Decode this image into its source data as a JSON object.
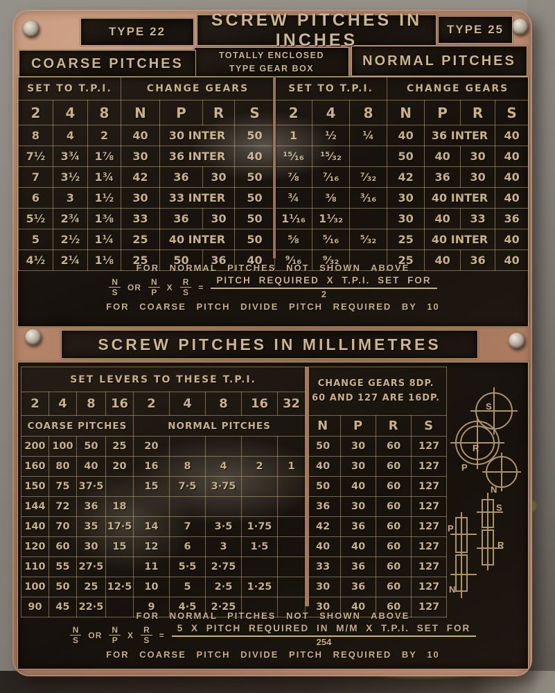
{
  "inches": {
    "type_left": "TYPE 22",
    "title": "SCREW PITCHES IN INCHES",
    "type_right": "TYPE 25",
    "enclosed_line1": "TOTALLY ENCLOSED",
    "enclosed_line2": "TYPE GEAR BOX",
    "coarse_label": "COARSE PITCHES",
    "normal_label": "NORMAL PITCHES",
    "set_tpi_label": "SET TO T.P.I.",
    "change_gears_label": "CHANGE GEARS",
    "col_letters": [
      "2",
      "4",
      "8",
      "N",
      "P",
      "R",
      "S",
      "2",
      "4",
      "8",
      "N",
      "P",
      "R",
      "S"
    ],
    "rows": [
      [
        "8",
        "4",
        "2",
        "40",
        {
          "t": "30 INTER",
          "s": 2
        },
        "50",
        "1",
        "½",
        "¼",
        "40",
        {
          "t": "36 INTER",
          "s": 2
        },
        "40"
      ],
      [
        "7½",
        "3¾",
        "1⅞",
        "30",
        {
          "t": "36 INTER",
          "s": 2
        },
        "40",
        "¹⁵⁄₁₆",
        "¹⁵⁄₃₂",
        "",
        "50",
        "40",
        "30",
        "40"
      ],
      [
        "7",
        "3½",
        "1¾",
        "42",
        "36",
        "30",
        "50",
        "⅞",
        "⁷⁄₁₆",
        "⁷⁄₃₂",
        "42",
        "36",
        "30",
        "40"
      ],
      [
        "6",
        "3",
        "1½",
        "30",
        {
          "t": "33 INTER",
          "s": 2
        },
        "50",
        "¾",
        "⅜",
        "³⁄₁₆",
        "30",
        {
          "t": "40 INTER",
          "s": 2
        },
        "40"
      ],
      [
        "5½",
        "2¾",
        "1⅜",
        "33",
        "36",
        "30",
        "50",
        "1¹⁄₁₆",
        "1¹⁄₃₂",
        "",
        "30",
        "40",
        "33",
        "36"
      ],
      [
        "5",
        "2½",
        "1¼",
        "25",
        {
          "t": "40 INTER",
          "s": 2
        },
        "50",
        "⅝",
        "⁵⁄₁₆",
        "⁵⁄₃₂",
        "25",
        {
          "t": "40 INTER",
          "s": 2
        },
        "40"
      ],
      [
        "4½",
        "2¼",
        "1⅛",
        "25",
        "50",
        "36",
        "40",
        "⁹⁄₁₆",
        "⁹⁄₃₂",
        "",
        "25",
        "40",
        "36",
        "40"
      ]
    ]
  },
  "inches_formula": {
    "line1": "FOR NORMAL PITCHES NOT SHOWN ABOVE",
    "f1_top": "N",
    "f1_bot": "S",
    "or": "OR",
    "f2_top": "N",
    "f2_bot": "P",
    "times": "X",
    "f3_top": "R",
    "f3_bot": "S",
    "equals": "=",
    "numerator": "PITCH REQUIRED X T.P.I. SET FOR",
    "denominator": "2",
    "line3": "FOR COARSE PITCH DIVIDE PITCH REQUIRED BY 10"
  },
  "mm": {
    "title": "SCREW PITCHES IN MILLIMETRES",
    "set_levers": "SET LEVERS TO THESE T.P.I.",
    "note1": "CHANGE GEARS 8DP.",
    "note2": "60 AND 127 ARE 16DP.",
    "tpi_cells": [
      "2",
      "4",
      "8",
      "16",
      "2",
      "4",
      "8",
      "16",
      "32"
    ],
    "coarse_label": "COARSE PITCHES",
    "normal_label": "NORMAL PITCHES",
    "gear_cols": [
      "N",
      "P",
      "R",
      "S"
    ],
    "rows": [
      [
        "200",
        "100",
        "50",
        "25",
        "20",
        "",
        "",
        "",
        "",
        "50",
        "30",
        "60",
        "127"
      ],
      [
        "160",
        "80",
        "40",
        "20",
        "16",
        "8",
        "4",
        "2",
        "1",
        "40",
        "30",
        "60",
        "127"
      ],
      [
        "150",
        "75",
        "37·5",
        "",
        "15",
        "7·5",
        "3·75",
        "",
        "",
        "50",
        "40",
        "60",
        "127"
      ],
      [
        "144",
        "72",
        "36",
        "18",
        "",
        "",
        "",
        "",
        "",
        "36",
        "30",
        "60",
        "127"
      ],
      [
        "140",
        "70",
        "35",
        "17·5",
        "14",
        "7",
        "3·5",
        "1·75",
        "",
        "42",
        "36",
        "60",
        "127"
      ],
      [
        "120",
        "60",
        "30",
        "15",
        "12",
        "6",
        "3",
        "1·5",
        "",
        "40",
        "40",
        "60",
        "127"
      ],
      [
        "110",
        "55",
        "27·5",
        "",
        "11",
        "5·5",
        "2·75",
        "",
        "",
        "33",
        "36",
        "60",
        "127"
      ],
      [
        "100",
        "50",
        "25",
        "12·5",
        "10",
        "5",
        "2·5",
        "1·25",
        "",
        "30",
        "36",
        "60",
        "127"
      ],
      [
        "90",
        "45",
        "22·5",
        "",
        "9",
        "4·5",
        "2·25",
        "",
        "",
        "30",
        "40",
        "60",
        "127"
      ]
    ]
  },
  "mm_formula": {
    "line1": "FOR NORMAL PITCHES NOT SHOWN ABOVE",
    "f1_top": "N",
    "f1_bot": "S",
    "or": "OR",
    "f2_top": "N",
    "f2_bot": "P",
    "times": "X",
    "f3_top": "R",
    "f3_bot": "S",
    "equals": "=",
    "numerator": "5 X PITCH REQUIRED IN M/M X T.P.I. SET FOR",
    "denominator": "254",
    "line3": "FOR COARSE PITCH DIVIDE PITCH REQUIRED BY 10"
  },
  "gear_diagram": {
    "letters": {
      "s": "S",
      "r": "R",
      "p": "P",
      "n": "N"
    }
  }
}
